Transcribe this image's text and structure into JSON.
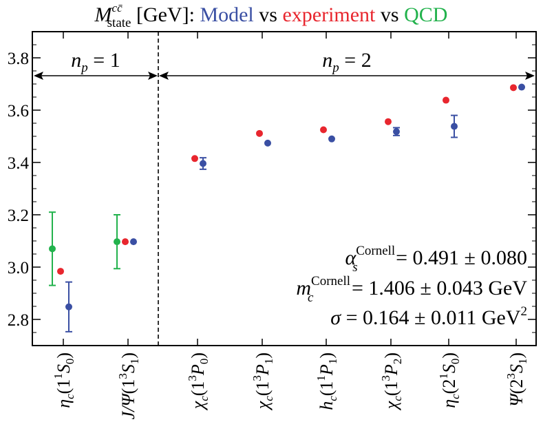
{
  "chart_data": {
    "type": "scatter",
    "title": {
      "base": "M",
      "sup": "cc̄",
      "sub": "state",
      "unit": " [GeV]: ",
      "parts": [
        {
          "text": "Model",
          "color": "#3a4fa3"
        },
        {
          "text": " vs ",
          "color": "#000000"
        },
        {
          "text": "experiment",
          "color": "#e8262e"
        },
        {
          "text": " vs ",
          "color": "#000000"
        },
        {
          "text": "QCD",
          "color": "#22b24c"
        }
      ]
    },
    "xlabel": "",
    "ylabel": "",
    "ylim": [
      2.7,
      3.9
    ],
    "y_ticks": [
      "2.8",
      "3.0",
      "3.2",
      "3.4",
      "3.6",
      "3.8"
    ],
    "y_tick_values": [
      2.8,
      3.0,
      3.2,
      3.4,
      3.6,
      3.8
    ],
    "grid": false,
    "categories": [
      {
        "main": "η",
        "sub": "c",
        "paren": "(1",
        "sup1": "1",
        "term": "S",
        "tsub": "0",
        "close": ")"
      },
      {
        "main": "J/Ψ",
        "sub": "",
        "paren": "(1",
        "sup1": "3",
        "term": "S",
        "tsub": "1",
        "close": ")"
      },
      {
        "main": "χ",
        "sub": "c",
        "paren": "(1",
        "sup1": "3",
        "term": "P",
        "tsub": "0",
        "close": ")"
      },
      {
        "main": "χ",
        "sub": "c",
        "paren": "(1",
        "sup1": "3",
        "term": "P",
        "tsub": "1",
        "close": ")"
      },
      {
        "main": "h",
        "sub": "c",
        "paren": "(1",
        "sup1": "1",
        "term": "P",
        "tsub": "1",
        "close": ")"
      },
      {
        "main": "χ",
        "sub": "c",
        "paren": "(1",
        "sup1": "3",
        "term": "P",
        "tsub": "2",
        "close": ")"
      },
      {
        "main": "η",
        "sub": "c",
        "paren": "(2",
        "sup1": "1",
        "term": "S",
        "tsub": "0",
        "close": ")"
      },
      {
        "main": "Ψ",
        "sub": "",
        "paren": "(2",
        "sup1": "3",
        "term": "S",
        "tsub": "1",
        "close": ")"
      }
    ],
    "series": [
      {
        "key": "model",
        "color": "#3a4fa3",
        "values": [
          2.848,
          3.097,
          3.396,
          3.474,
          3.49,
          3.518,
          3.538,
          3.688
        ],
        "errors": [
          0.095,
          0.0,
          0.022,
          0.0,
          0.0,
          0.015,
          0.042,
          0.0
        ]
      },
      {
        "key": "experiment",
        "color": "#e8262e",
        "values": [
          2.984,
          3.097,
          3.415,
          3.511,
          3.525,
          3.556,
          3.638,
          3.686
        ],
        "errors": [
          0,
          0,
          0,
          0,
          0,
          0,
          0,
          0
        ]
      },
      {
        "key": "qcd",
        "color": "#22b24c",
        "values": [
          3.07,
          3.097,
          null,
          null,
          null,
          null,
          null,
          null
        ],
        "errors": [
          0.14,
          0.103,
          null,
          null,
          null,
          null,
          null,
          null
        ]
      }
    ],
    "regions": [
      {
        "label_base": "n",
        "label_sub": "p",
        "label_rest": " = 1"
      },
      {
        "label_base": "n",
        "label_sub": "p",
        "label_rest": " = 2"
      }
    ],
    "annotations": [
      {
        "base": "α",
        "sub": "s",
        "sup": "Cornell",
        "rest": " = 0.491 ± 0.080",
        "exp": ""
      },
      {
        "base": "m",
        "sub": "c",
        "sup": "Cornell",
        "rest": " = 1.406 ± 0.043 GeV",
        "exp": ""
      },
      {
        "base": "σ",
        "sub": "",
        "sup": "",
        "rest": " = 0.164 ± 0.011 GeV",
        "exp": "2"
      }
    ]
  }
}
